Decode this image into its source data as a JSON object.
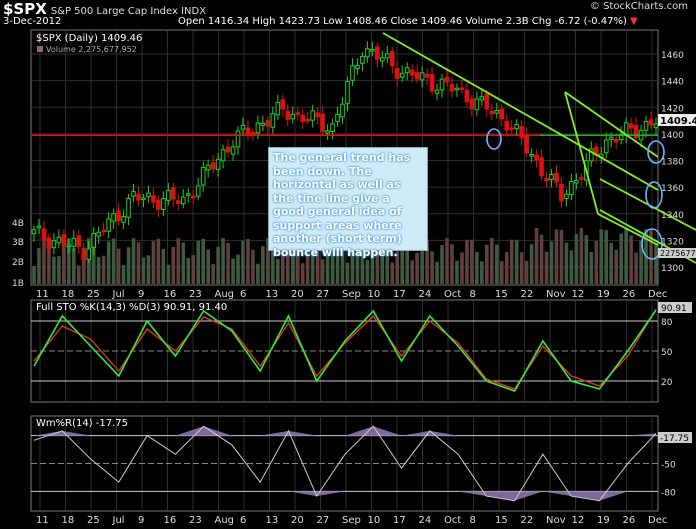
{
  "header": {
    "ticker": "$SPX",
    "name": "S&P 500 Large Cap Index",
    "exchange": "INDX",
    "brand": "© StockCharts.com",
    "date": "3-Dec-2012",
    "quote": "Open 1416.34  High 1423.73  Low 1408.46  Close 1409.46  Volume 2.3B  Chg -6.72 (-0.47%)",
    "down_arrow": "▼"
  },
  "annotation": "The general trend has been down.  The horizontal as well as the tine line give a good general idea of support areas where another (short term) bounce will happen.",
  "price_panel": {
    "legend_symbol": "$SPX (Daily) 1409.46",
    "legend_volume": "Volume 2,275,677,952",
    "last_price_tag": "1409.46",
    "volume_tag": "2275677",
    "price_ticks": [
      "1460",
      "1440",
      "1420",
      "1400",
      "1380",
      "1360",
      "1340",
      "1320",
      "1300"
    ],
    "volume_ticks": [
      "4B",
      "3B",
      "2B",
      "1B"
    ],
    "colors": {
      "up": "#20d020",
      "down": "#e01010",
      "horizontal_line": "#e01010",
      "trend_line": "#20b020",
      "channel": "#88ee22",
      "circle": "#6ab6ff"
    }
  },
  "sto_panel": {
    "legend": "Full STO %K(14,3) %D(3) 90.91, 91.40",
    "legend_k": "90.91",
    "legend_d": "91.40",
    "value_tag": "90.91",
    "ticks": [
      "80",
      "50",
      "20"
    ],
    "colors": {
      "k": "#33ee33",
      "d": "#ee3333"
    }
  },
  "wr_panel": {
    "legend": "Wm%R(14) -17.75",
    "value_tag": "-17.75",
    "ticks": [
      "-20",
      "-50",
      "-80"
    ]
  },
  "x_labels": [
    "11",
    "18",
    "25",
    "Jul",
    "9",
    "16",
    "23",
    "Aug",
    "6",
    "13",
    "20",
    "27",
    "Sep",
    "10",
    "17",
    "24",
    "Oct",
    "8",
    "15",
    "22",
    "Nov",
    "12",
    "19",
    "26",
    "Dec"
  ],
  "chart_data": [
    {
      "type": "candlestick",
      "title": "$SPX (Daily) 1409.46",
      "x": [
        "Jun 11",
        "Jun 25",
        "Jul 9",
        "Jul 23",
        "Aug 6",
        "Aug 20",
        "Sep 4",
        "Sep 14",
        "Oct 1",
        "Oct 15",
        "Oct 31",
        "Nov 15",
        "Dec 3"
      ],
      "close": [
        1325,
        1313,
        1352,
        1350,
        1395,
        1418,
        1405,
        1465,
        1445,
        1433,
        1410,
        1353,
        1409.46
      ],
      "ylim": [
        1285,
        1480
      ],
      "volume": {
        "ticks": [
          "4B",
          "3B",
          "2B",
          "1B"
        ],
        "last": 2275677952
      },
      "lines": {
        "horizontal_support": 1399,
        "trend_start": [
          "Sep 14",
          1472
        ],
        "trend_end": [
          "Dec 3",
          1393
        ]
      }
    },
    {
      "type": "line",
      "title": "Full STO %K(14,3) %D(3)",
      "series": [
        {
          "name": "%K",
          "values": [
            35,
            85,
            55,
            25,
            80,
            45,
            90,
            70,
            30,
            85,
            20,
            60,
            90,
            40,
            85,
            55,
            20,
            10,
            60,
            20,
            12,
            50,
            90.91
          ]
        },
        {
          "name": "%D",
          "values": [
            40,
            75,
            62,
            30,
            72,
            50,
            84,
            72,
            35,
            78,
            25,
            58,
            85,
            45,
            80,
            58,
            22,
            12,
            55,
            25,
            15,
            45,
            91.4
          ]
        }
      ],
      "ylim": [
        0,
        100
      ],
      "ticks": [
        80,
        50,
        20
      ]
    },
    {
      "type": "line",
      "title": "Wm%R(14)",
      "series": [
        {
          "name": "Wm%R",
          "values": [
            -25,
            -15,
            -45,
            -70,
            -20,
            -40,
            -10,
            -30,
            -70,
            -15,
            -85,
            -40,
            -10,
            -55,
            -15,
            -40,
            -85,
            -90,
            -40,
            -85,
            -90,
            -50,
            -17.75
          ]
        }
      ],
      "ylim": [
        -100,
        0
      ],
      "ticks": [
        -20,
        -50,
        -80
      ]
    }
  ]
}
